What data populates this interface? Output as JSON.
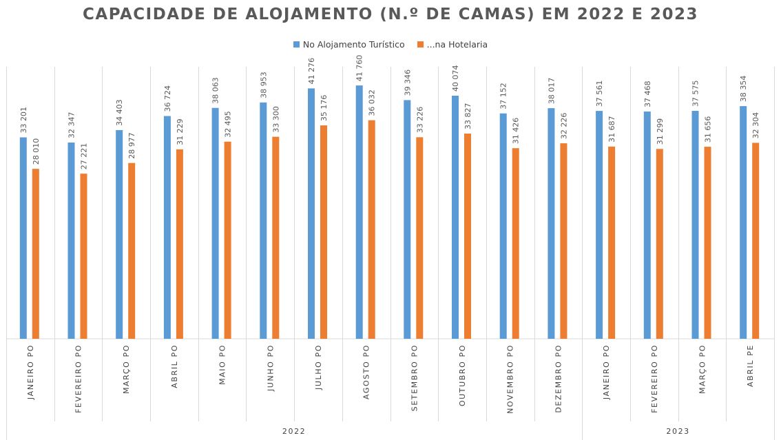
{
  "chart_data": {
    "type": "bar",
    "title": "CAPACIDADE DE ALOJAMENTO (N.º DE CAMAS) EM 2022 E 2023",
    "xlabel": "",
    "ylabel": "",
    "ylim": [
      0,
      42000
    ],
    "grid": false,
    "legend_position": "top-center",
    "categories": [
      "JANEIRO PO",
      "FEVEREIRO PO",
      "MARÇO PO",
      "ABRIL PO",
      "MAIO PO",
      "JUNHO PO",
      "JULHO PO",
      "AGOSTO PO",
      "SETEMBRO PO",
      "OUTUBRO PO",
      "NOVEMBRO PO",
      "DEZEMBRO PO",
      "JANEIRO PO",
      "FEVEREIRO PO",
      "MARÇO PO",
      "ABRIL PE"
    ],
    "groups": [
      {
        "label": "2022",
        "count": 12
      },
      {
        "label": "2023",
        "count": 4
      }
    ],
    "series": [
      {
        "name": "No Alojamento Turístico",
        "color": "#5B9BD5",
        "values": [
          33201,
          32347,
          34403,
          36724,
          38063,
          38953,
          41276,
          41760,
          39346,
          40074,
          37152,
          38017,
          37561,
          37468,
          37575,
          38354
        ],
        "labels": [
          "33 201",
          "32 347",
          "34 403",
          "36 724",
          "38 063",
          "38 953",
          "41 276",
          "41 760",
          "39 346",
          "40 074",
          "37 152",
          "38 017",
          "37 561",
          "37 468",
          "37 575",
          "38 354"
        ]
      },
      {
        "name": "...na Hotelaria",
        "color": "#ED7D31",
        "values": [
          28010,
          27221,
          28977,
          31229,
          32495,
          33300,
          35176,
          36032,
          33226,
          33827,
          31426,
          32226,
          31687,
          31299,
          31656,
          32304
        ],
        "labels": [
          "28 010",
          "27 221",
          "28 977",
          "31 229",
          "32 495",
          "33 300",
          "35 176",
          "36 032",
          "33 226",
          "33 827",
          "31 426",
          "32 226",
          "31 687",
          "31 299",
          "31 656",
          "32 304"
        ]
      }
    ]
  }
}
